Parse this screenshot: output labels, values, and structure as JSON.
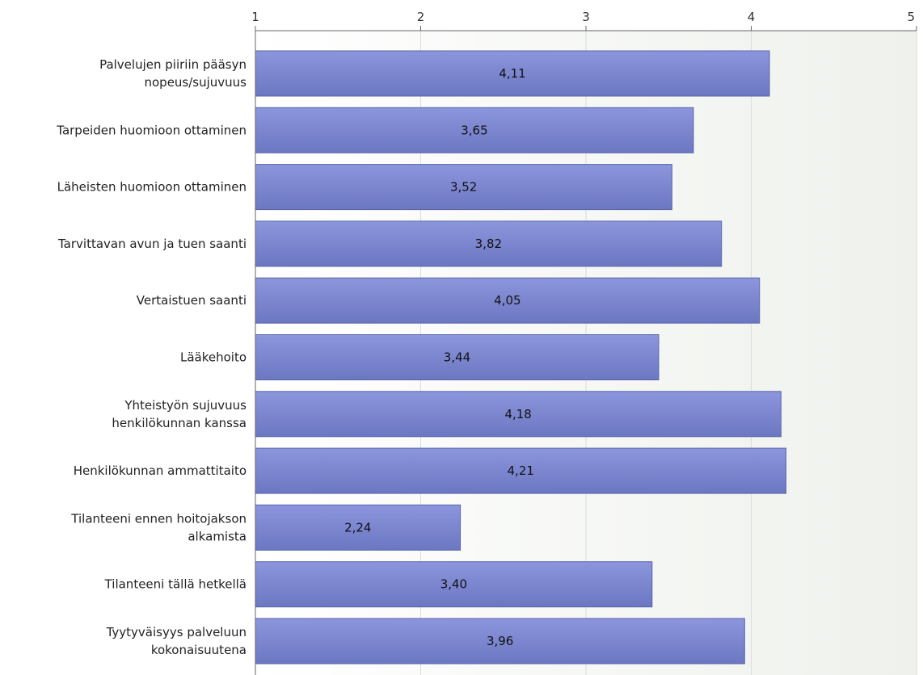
{
  "chart_data": {
    "type": "bar",
    "orientation": "horizontal",
    "categories": [
      [
        "Palvelujen piiriin pääsyn",
        "nopeus/sujuvuus"
      ],
      [
        "Tarpeiden huomioon ottaminen"
      ],
      [
        "Läheisten huomioon ottaminen"
      ],
      [
        "Tarvittavan avun ja tuen saanti"
      ],
      [
        "Vertaistuen saanti"
      ],
      [
        "Lääkehoito"
      ],
      [
        "Yhteistyön sujuvuus",
        "henkilökunnan kanssa"
      ],
      [
        "Henkilökunnan ammattitaito"
      ],
      [
        "Tilanteeni ennen hoitojakson",
        "alkamista"
      ],
      [
        "Tilanteeni tällä hetkellä"
      ],
      [
        "Tyytyväisyys palveluun",
        "kokonaisuutena"
      ]
    ],
    "values": [
      4.11,
      3.65,
      3.52,
      3.82,
      4.05,
      3.44,
      4.18,
      4.21,
      2.24,
      3.4,
      3.96
    ],
    "value_labels": [
      "4,11",
      "3,65",
      "3,52",
      "3,82",
      "4,05",
      "3,44",
      "4,18",
      "4,21",
      "2,24",
      "3,40",
      "3,96"
    ],
    "xlim": [
      1,
      5
    ],
    "ticks": [
      1,
      2,
      3,
      4,
      5
    ],
    "tick_labels": [
      "1",
      "2",
      "3",
      "4",
      "5"
    ],
    "axis_position": "top",
    "grid": true,
    "legend": "none",
    "title": "",
    "xlabel": "",
    "ylabel": ""
  },
  "colors": {
    "bar_top": "#8c96dd",
    "bar_bottom": "#6c77c2",
    "plot_bg_left": "#ffffff",
    "plot_bg_right": "#eef1ec"
  }
}
